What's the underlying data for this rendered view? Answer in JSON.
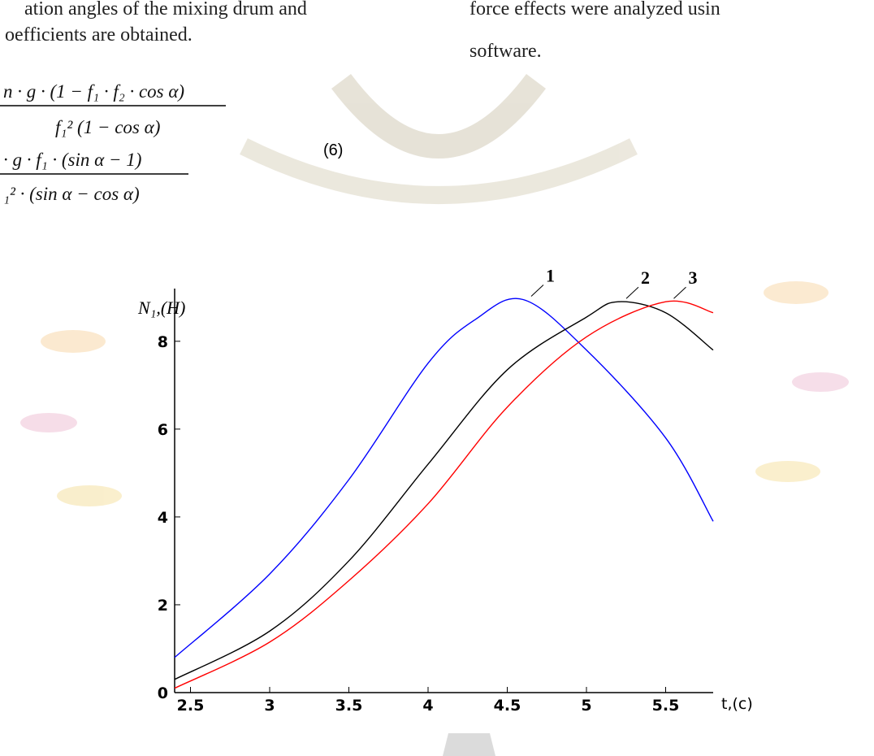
{
  "document": {
    "left_text": [
      "ation angles of the mixing drum and",
      "oefficients are obtained."
    ],
    "right_text": [
      "force effects were analyzed usin",
      "software."
    ],
    "equation": {
      "num1": "n · g · (1 − f₁ · f₂ · cos α)",
      "den1": "f₁² (1 − cos α)",
      "num2": "· g · f₁ · (sin α − 1)",
      "den2": "₁² · (sin α − cos α)",
      "number": "(6)"
    }
  },
  "chart_data": {
    "type": "line",
    "y_label": "N₁,(H)",
    "x_label": "t,(c)",
    "xlim": [
      2.4,
      5.8
    ],
    "ylim": [
      0,
      9.2
    ],
    "xticks": [
      2.5,
      3,
      3.5,
      4,
      4.5,
      5,
      5.5
    ],
    "yticks": [
      0,
      2,
      4,
      6,
      8
    ],
    "series": [
      {
        "name": "1",
        "color": "#0000ff",
        "x": [
          2.4,
          3,
          3.5,
          4,
          4.3,
          4.6,
          5,
          5.5,
          5.8
        ],
        "values": [
          0.8,
          2.7,
          4.85,
          7.5,
          8.5,
          8.95,
          7.8,
          5.8,
          3.9
        ]
      },
      {
        "name": "2",
        "color": "#000000",
        "x": [
          2.4,
          3,
          3.5,
          4,
          4.5,
          5,
          5.2,
          5.5,
          5.8
        ],
        "values": [
          0.3,
          1.4,
          3.0,
          5.2,
          7.35,
          8.55,
          8.9,
          8.65,
          7.8
        ]
      },
      {
        "name": "3",
        "color": "#ff0000",
        "x": [
          2.4,
          3,
          3.5,
          4,
          4.5,
          5,
          5.5,
          5.8
        ],
        "values": [
          0.1,
          1.15,
          2.55,
          4.3,
          6.5,
          8.1,
          8.9,
          8.65
        ]
      }
    ]
  }
}
